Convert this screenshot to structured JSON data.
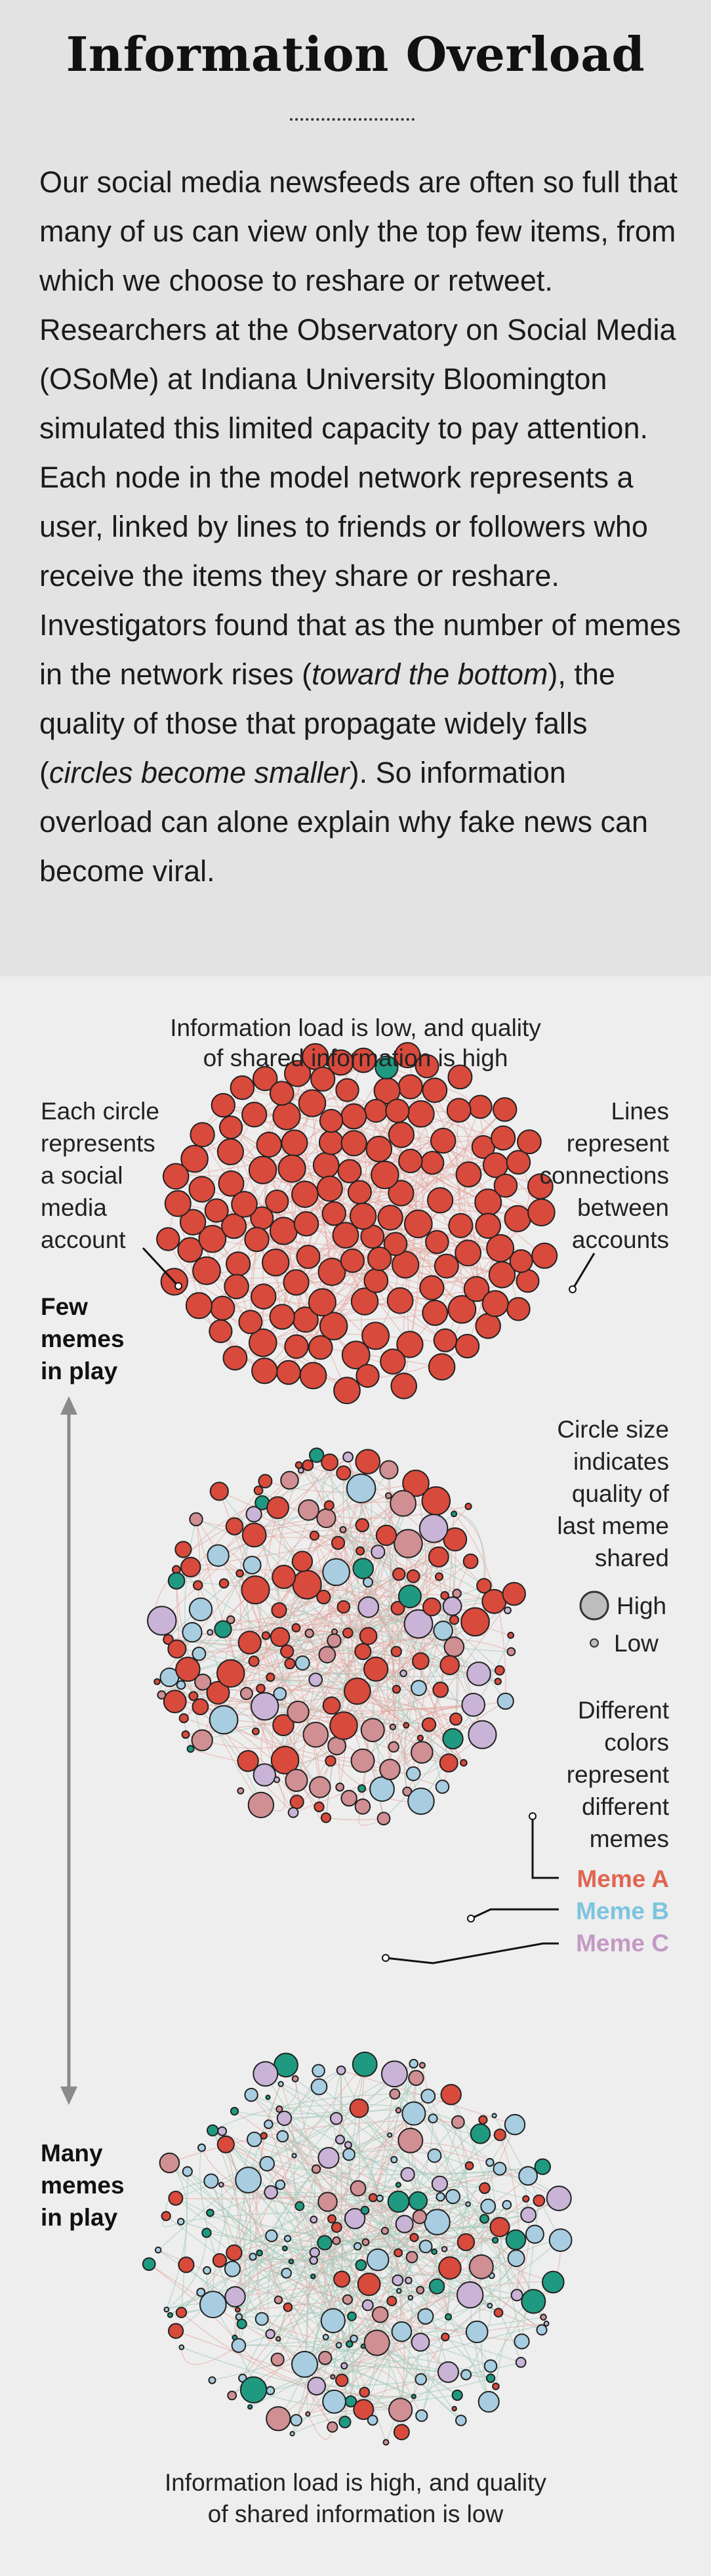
{
  "header": {
    "title": "Information Overload",
    "intro": {
      "part1": "Our social media newsfeeds are often so full that many of us can view only the top few items, from which we choose to reshare or retweet. Researchers at the Observatory on Social Media (OSoMe) at Indiana University Bloomington simulated this limited capacity to pay attention. Each node in the model network represents a user, linked by lines to friends or followers who receive the items they share or reshare. Investigators found that as the number of memes in the network rises (",
      "italic1": "toward the bottom",
      "part2": "), the quality of those that propagate widely falls (",
      "italic2": "circles become smaller",
      "part3": "). So information overload can alone explain why fake news can become viral."
    }
  },
  "diagram": {
    "top_caption": [
      "Information load is low, and quality",
      "of shared information is high"
    ],
    "bottom_caption": [
      "Information load is high, and quality",
      "of shared information is low"
    ],
    "circle_note": [
      "Each circle",
      "represents",
      "a social",
      "media",
      "account"
    ],
    "lines_note": [
      "Lines",
      "represent",
      "connections",
      "between",
      "accounts"
    ],
    "few_memes": [
      "Few",
      "memes",
      "in play"
    ],
    "many_memes": [
      "Many",
      "memes",
      "in play"
    ],
    "size_note": [
      "Circle size",
      "indicates",
      "quality of",
      "last meme",
      "shared"
    ],
    "size_legend": {
      "high": "High",
      "low": "Low"
    },
    "colors_note": [
      "Different",
      "colors",
      "represent",
      "different",
      "memes"
    ],
    "memes": [
      {
        "label": "Meme A",
        "color": "#e06652"
      },
      {
        "label": "Meme B",
        "color": "#7cc4df"
      },
      {
        "label": "Meme C",
        "color": "#c39ac4"
      }
    ],
    "palette": {
      "red_node": "#d84a3c",
      "pink_node": "#cf8f93",
      "teal_node": "#1f9a80",
      "blue_node": "#a8cde0",
      "lilac_node": "#c9b3d6",
      "red_edge": "#e3a49c",
      "green_edge": "#9cc7b6"
    }
  }
}
